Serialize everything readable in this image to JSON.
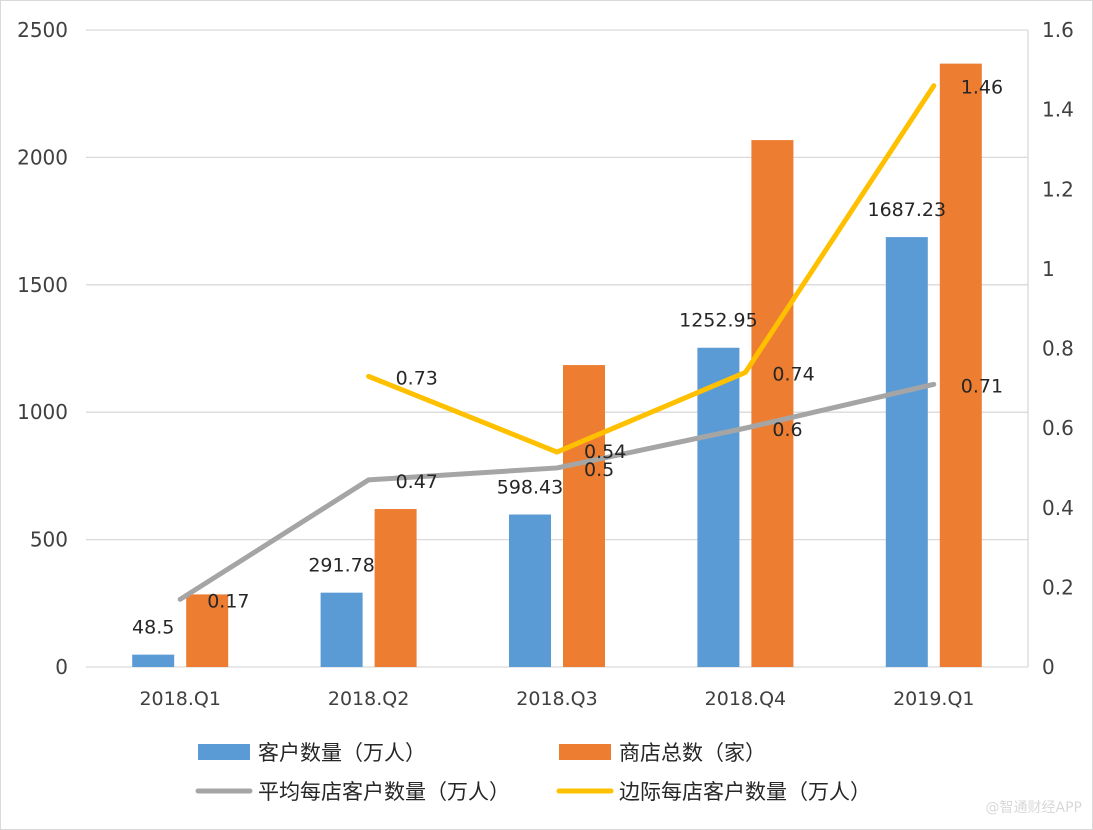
{
  "chart_data": {
    "type": "bar",
    "categories": [
      "2018.Q1",
      "2018.Q2",
      "2018.Q3",
      "2018.Q4",
      "2019.Q1"
    ],
    "series": [
      {
        "name": "客户数量（万人）",
        "kind": "bar",
        "axis": "left",
        "color": "#5b9bd5",
        "values": [
          48.5,
          291.78,
          598.43,
          1252.95,
          1687.23
        ],
        "labels": [
          "48.5",
          "291.78",
          "598.43",
          "1252.95",
          "1687.23"
        ]
      },
      {
        "name": "商店总数（家）",
        "kind": "bar",
        "axis": "left",
        "color": "#ed7d31",
        "values": [
          285,
          620,
          1185,
          2068,
          2368
        ],
        "labels": [
          "",
          "",
          "",
          "",
          ""
        ]
      },
      {
        "name": "平均每店客户数量（万人）",
        "kind": "line",
        "axis": "right",
        "color": "#a5a5a5",
        "values": [
          0.17,
          0.47,
          0.5,
          0.6,
          0.71
        ],
        "labels": [
          "0.17",
          "0.47",
          "0.5",
          "0.6",
          "0.71"
        ]
      },
      {
        "name": "边际每店客户数量（万人）",
        "kind": "line",
        "axis": "right",
        "color": "#ffc000",
        "values": [
          null,
          0.73,
          0.54,
          0.74,
          1.46
        ],
        "labels": [
          "",
          "0.73",
          "0.54",
          "0.74",
          "1.46"
        ]
      }
    ],
    "y_left": {
      "ylim": [
        0,
        2500
      ],
      "ticks": [
        "0",
        "500",
        "1000",
        "1500",
        "2000",
        "2500"
      ]
    },
    "y_right": {
      "ylim": [
        0,
        1.6
      ],
      "ticks": [
        "0",
        "0.2",
        "0.4",
        "0.6",
        "0.8",
        "1",
        "1.2",
        "1.4",
        "1.6"
      ]
    },
    "grid": true,
    "legend_position": "bottom"
  },
  "watermark": "@智通财经APP"
}
